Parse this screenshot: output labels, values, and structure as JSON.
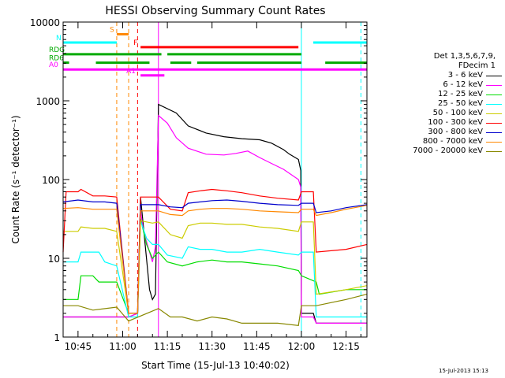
{
  "chart_data": {
    "type": "line",
    "title": "HESSI Observing Summary Count Rates",
    "xlabel": "Start Time (15-Jul-13 10:40:02)",
    "ylabel": "Count Rate (s⁻¹ detector⁻¹)",
    "yscale": "log",
    "ylim": [
      1,
      10000
    ],
    "xlim_min": [
      40.0,
      142.0
    ],
    "x_unit": "minutes after 10:00 UT",
    "x_ticks": [
      {
        "t": 45,
        "label": "10:45"
      },
      {
        "t": 60,
        "label": "11:00"
      },
      {
        "t": 75,
        "label": "11:15"
      },
      {
        "t": 90,
        "label": "11:30"
      },
      {
        "t": 105,
        "label": "11:45"
      },
      {
        "t": 120,
        "label": "12:00"
      },
      {
        "t": 135,
        "label": "12:15"
      }
    ],
    "y_ticks": [
      {
        "v": 1,
        "label": "1"
      },
      {
        "v": 10,
        "label": "10"
      },
      {
        "v": 100,
        "label": "100"
      },
      {
        "v": 1000,
        "label": "1000"
      },
      {
        "v": 10000,
        "label": "10000"
      }
    ],
    "legend_title": [
      "Det 1,3,5,6,7,9,",
      "FDecim 1"
    ],
    "series": [
      {
        "name": "3 - 6 keV",
        "color": "#000000",
        "points": [
          [
            40,
            1.8
          ],
          [
            59,
            1.8
          ],
          [
            62,
            1.8
          ],
          [
            65,
            2
          ],
          [
            66,
            60
          ],
          [
            69,
            4
          ],
          [
            70,
            3
          ],
          [
            71,
            3.5
          ],
          [
            72,
            900
          ],
          [
            78,
            700
          ],
          [
            82,
            480
          ],
          [
            88,
            390
          ],
          [
            94,
            350
          ],
          [
            100,
            330
          ],
          [
            106,
            320
          ],
          [
            110,
            290
          ],
          [
            114,
            240
          ],
          [
            116,
            210
          ],
          [
            119,
            180
          ],
          [
            119.8,
            130
          ],
          [
            120,
            2
          ],
          [
            124,
            2
          ],
          [
            125,
            1.5
          ],
          [
            142,
            1.5
          ]
        ]
      },
      {
        "name": "6 - 12 keV",
        "color": "#ff00ff",
        "points": [
          [
            40,
            1.8
          ],
          [
            59,
            1.8
          ],
          [
            62,
            1.8
          ],
          [
            65,
            2
          ],
          [
            66,
            40
          ],
          [
            67,
            22
          ],
          [
            69,
            12
          ],
          [
            70,
            9
          ],
          [
            71,
            14
          ],
          [
            72,
            650
          ],
          [
            75,
            520
          ],
          [
            78,
            340
          ],
          [
            82,
            250
          ],
          [
            88,
            210
          ],
          [
            94,
            205
          ],
          [
            98,
            215
          ],
          [
            102,
            230
          ],
          [
            106,
            190
          ],
          [
            110,
            160
          ],
          [
            114,
            135
          ],
          [
            119,
            100
          ],
          [
            119.8,
            80
          ],
          [
            120,
            1.8
          ],
          [
            124,
            1.8
          ],
          [
            125,
            1.5
          ],
          [
            142,
            1.5
          ]
        ]
      },
      {
        "name": "12 - 25 keV",
        "color": "#00dd00",
        "points": [
          [
            40,
            3
          ],
          [
            45,
            3
          ],
          [
            46,
            6
          ],
          [
            50,
            6
          ],
          [
            52,
            5
          ],
          [
            54,
            5
          ],
          [
            58,
            5
          ],
          [
            62,
            2
          ],
          [
            65,
            2
          ],
          [
            66,
            32
          ],
          [
            68,
            15
          ],
          [
            70,
            10
          ],
          [
            72,
            12
          ],
          [
            75,
            9
          ],
          [
            80,
            8
          ],
          [
            85,
            9
          ],
          [
            90,
            9.5
          ],
          [
            95,
            9
          ],
          [
            100,
            9
          ],
          [
            106,
            8.5
          ],
          [
            112,
            8
          ],
          [
            119,
            7
          ],
          [
            120,
            6
          ],
          [
            125,
            5
          ],
          [
            126,
            3.5
          ],
          [
            135,
            4
          ],
          [
            142,
            4
          ]
        ]
      },
      {
        "name": "25 - 50 keV",
        "color": "#00ffff",
        "points": [
          [
            40,
            9
          ],
          [
            45,
            9
          ],
          [
            46,
            12
          ],
          [
            52,
            12
          ],
          [
            54,
            9
          ],
          [
            58,
            8
          ],
          [
            62,
            1.8
          ],
          [
            65,
            1.8
          ],
          [
            66,
            30
          ],
          [
            68,
            18
          ],
          [
            70,
            15
          ],
          [
            72,
            15
          ],
          [
            75,
            11
          ],
          [
            80,
            10
          ],
          [
            82,
            14
          ],
          [
            86,
            13
          ],
          [
            90,
            13
          ],
          [
            95,
            12
          ],
          [
            100,
            12
          ],
          [
            106,
            13
          ],
          [
            112,
            12
          ],
          [
            119,
            11
          ],
          [
            120,
            12
          ],
          [
            124,
            12
          ],
          [
            125,
            1.8
          ],
          [
            142,
            1.8
          ]
        ]
      },
      {
        "name": "50 - 100 keV",
        "color": "#cccc00",
        "points": [
          [
            40,
            22
          ],
          [
            45,
            22
          ],
          [
            46,
            25
          ],
          [
            50,
            24
          ],
          [
            54,
            24
          ],
          [
            58,
            22
          ],
          [
            62,
            2
          ],
          [
            65,
            2
          ],
          [
            66,
            30
          ],
          [
            70,
            28
          ],
          [
            72,
            29
          ],
          [
            76,
            20
          ],
          [
            80,
            18
          ],
          [
            82,
            26
          ],
          [
            86,
            28
          ],
          [
            90,
            28
          ],
          [
            95,
            27
          ],
          [
            100,
            27
          ],
          [
            106,
            25
          ],
          [
            112,
            24
          ],
          [
            119,
            22
          ],
          [
            120,
            29
          ],
          [
            124,
            29
          ],
          [
            125,
            3.5
          ],
          [
            135,
            4
          ],
          [
            142,
            4.5
          ]
        ]
      },
      {
        "name": "100 - 300 keV",
        "color": "#ff0000",
        "points": [
          [
            40,
            12
          ],
          [
            41,
            70
          ],
          [
            45,
            70
          ],
          [
            46,
            75
          ],
          [
            50,
            62
          ],
          [
            54,
            62
          ],
          [
            58,
            60
          ],
          [
            62,
            2
          ],
          [
            65,
            2
          ],
          [
            66,
            60
          ],
          [
            70,
            60
          ],
          [
            72,
            60
          ],
          [
            76,
            42
          ],
          [
            80,
            40
          ],
          [
            82,
            68
          ],
          [
            86,
            72
          ],
          [
            90,
            75
          ],
          [
            95,
            72
          ],
          [
            100,
            68
          ],
          [
            106,
            62
          ],
          [
            112,
            58
          ],
          [
            119,
            55
          ],
          [
            120,
            70
          ],
          [
            124,
            70
          ],
          [
            125,
            12
          ],
          [
            135,
            13
          ],
          [
            142,
            15
          ]
        ]
      },
      {
        "name": "300 - 800 keV",
        "color": "#0000cc",
        "points": [
          [
            40,
            52
          ],
          [
            45,
            55
          ],
          [
            50,
            52
          ],
          [
            54,
            52
          ],
          [
            58,
            50
          ],
          [
            62,
            2
          ],
          [
            65,
            2
          ],
          [
            66,
            48
          ],
          [
            70,
            48
          ],
          [
            72,
            48
          ],
          [
            76,
            45
          ],
          [
            80,
            44
          ],
          [
            82,
            50
          ],
          [
            86,
            52
          ],
          [
            90,
            54
          ],
          [
            95,
            55
          ],
          [
            100,
            53
          ],
          [
            106,
            50
          ],
          [
            112,
            48
          ],
          [
            119,
            47
          ],
          [
            120,
            50
          ],
          [
            124,
            50
          ],
          [
            125,
            38
          ],
          [
            130,
            40
          ],
          [
            135,
            44
          ],
          [
            142,
            48
          ]
        ]
      },
      {
        "name": "800 - 7000 keV",
        "color": "#ff8800",
        "points": [
          [
            40,
            43
          ],
          [
            45,
            44
          ],
          [
            50,
            42
          ],
          [
            54,
            42
          ],
          [
            58,
            42
          ],
          [
            62,
            2
          ],
          [
            65,
            2
          ],
          [
            66,
            40
          ],
          [
            70,
            40
          ],
          [
            72,
            40
          ],
          [
            76,
            36
          ],
          [
            80,
            35
          ],
          [
            82,
            40
          ],
          [
            86,
            42
          ],
          [
            90,
            43
          ],
          [
            95,
            43
          ],
          [
            100,
            42
          ],
          [
            106,
            40
          ],
          [
            112,
            39
          ],
          [
            119,
            38
          ],
          [
            120,
            42
          ],
          [
            124,
            42
          ],
          [
            125,
            35
          ],
          [
            130,
            38
          ],
          [
            135,
            42
          ],
          [
            142,
            47
          ]
        ]
      },
      {
        "name": "7000 - 20000 keV",
        "color": "#888800",
        "points": [
          [
            40,
            2.5
          ],
          [
            45,
            2.5
          ],
          [
            50,
            2.2
          ],
          [
            58,
            2.4
          ],
          [
            62,
            1.6
          ],
          [
            72,
            2.3
          ],
          [
            76,
            1.8
          ],
          [
            80,
            1.8
          ],
          [
            85,
            1.6
          ],
          [
            90,
            1.8
          ],
          [
            95,
            1.7
          ],
          [
            100,
            1.5
          ],
          [
            106,
            1.5
          ],
          [
            112,
            1.5
          ],
          [
            119,
            1.4
          ],
          [
            120,
            2.5
          ],
          [
            124,
            2.5
          ],
          [
            125,
            2.5
          ],
          [
            135,
            3
          ],
          [
            142,
            3.5
          ]
        ]
      }
    ],
    "flag_bars": [
      {
        "label": "S",
        "color": "#ff8800",
        "level": 7000,
        "segments": [
          [
            58,
            62
          ]
        ]
      },
      {
        "label": "N",
        "color": "#00ffff",
        "level": 5500,
        "segments": [
          [
            40,
            58
          ],
          [
            124,
            142
          ]
        ]
      },
      {
        "label": "F",
        "color": "#ff0000",
        "level": 4800,
        "segments": [
          [
            66,
            119
          ]
        ]
      },
      {
        "label": "RDG",
        "color": "#00aa00",
        "level": 3900,
        "segments": [
          [
            40,
            73
          ],
          [
            75,
            120
          ]
        ]
      },
      {
        "label": "RD6",
        "color": "#00aa00",
        "level": 3050,
        "segments": [
          [
            40,
            42
          ],
          [
            51,
            69
          ],
          [
            76,
            83
          ],
          [
            85,
            120
          ],
          [
            128,
            142
          ]
        ]
      },
      {
        "label": "A0",
        "color": "#ff00ff",
        "level": 2500,
        "segments": [
          [
            40,
            142
          ]
        ]
      },
      {
        "label": "A1",
        "color": "#ff00ff",
        "level": 2100,
        "segments": [
          [
            66,
            74
          ]
        ]
      }
    ],
    "vertical_markers": [
      {
        "t": 40,
        "color": "#00ffff",
        "style": "solid"
      },
      {
        "t": 58,
        "color": "#ff8800",
        "style": "dashed"
      },
      {
        "t": 62,
        "color": "#ff8800",
        "style": "dashed"
      },
      {
        "t": 65,
        "color": "#ff0000",
        "style": "dashed"
      },
      {
        "t": 72,
        "color": "#ff00ff",
        "style": "solid"
      },
      {
        "t": 120,
        "color": "#00ffff",
        "style": "solid"
      },
      {
        "t": 140,
        "color": "#00ffff",
        "style": "dashed"
      }
    ],
    "grid": false,
    "legend_position": "right"
  },
  "stamp": "15-Jul-2013 15:13"
}
